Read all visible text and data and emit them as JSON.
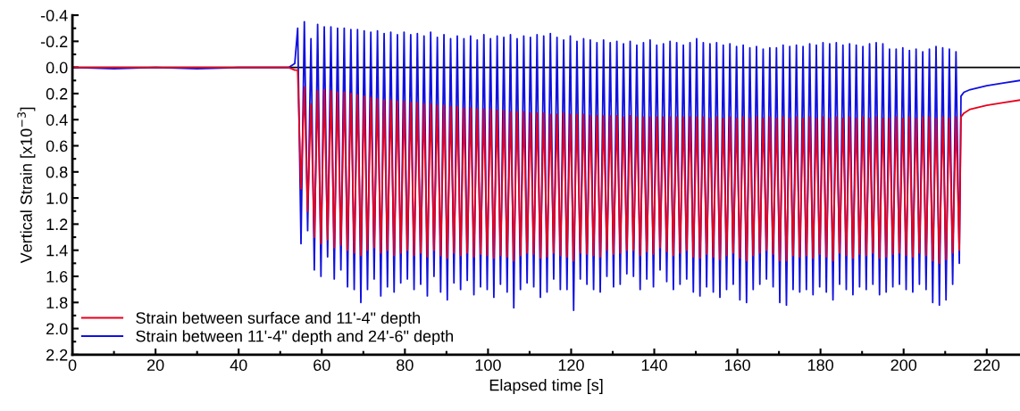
{
  "chart_data": {
    "type": "line",
    "xlabel": "Elapsed time [s]",
    "ylabel": "Vertical Strain [x10$^{−3}$]",
    "xlim": [
      0,
      228
    ],
    "xticks": [
      0,
      20,
      40,
      60,
      80,
      100,
      120,
      140,
      160,
      180,
      200,
      220
    ],
    "ylim": [
      2.2,
      -0.4
    ],
    "yticks": [
      -0.4,
      -0.2,
      {
        "value": 0,
        "label": "0.0"
      },
      0.2,
      0.4,
      0.6,
      0.8,
      {
        "value": 1,
        "label": "1.0"
      },
      1.2,
      1.4,
      1.6,
      1.8,
      {
        "value": 2,
        "label": "2.0"
      },
      2.2
    ],
    "grid": false,
    "legend": "bottom left",
    "line_style": "solid",
    "marker": "none",
    "ref_lines": [
      {
        "axis": "y",
        "value": 0,
        "color": "#000000"
      }
    ],
    "x": [
      0,
      10,
      20,
      30,
      40,
      50,
      52,
      53.5,
      54.2,
      55.0,
      55.8,
      56.6,
      57.4,
      58.2,
      59.0,
      59.8,
      60.6,
      61.4,
      62.2,
      63.0,
      63.8,
      64.6,
      65.4,
      66.2,
      67.0,
      67.8,
      68.6,
      69.4,
      70.2,
      71.0,
      71.8,
      72.6,
      73.4,
      74.2,
      75.0,
      75.8,
      76.6,
      77.4,
      78.2,
      79.0,
      79.8,
      80.6,
      81.4,
      82.2,
      83.0,
      83.8,
      84.6,
      85.4,
      86.2,
      87.0,
      87.8,
      88.6,
      89.4,
      90.2,
      91.0,
      91.8,
      92.6,
      93.4,
      94.2,
      95.0,
      95.8,
      96.6,
      97.4,
      98.2,
      99.0,
      99.8,
      100.6,
      101.4,
      102.2,
      103.0,
      103.8,
      104.6,
      105.4,
      106.2,
      107.0,
      107.8,
      108.6,
      109.4,
      110.2,
      111.0,
      111.8,
      112.6,
      113.4,
      114.2,
      115.0,
      115.8,
      116.6,
      117.4,
      118.2,
      119.0,
      119.8,
      120.6,
      121.4,
      122.2,
      123.0,
      123.8,
      124.6,
      125.4,
      126.2,
      127.0,
      127.8,
      128.6,
      129.4,
      130.2,
      131.0,
      131.8,
      132.6,
      133.4,
      134.2,
      135.0,
      135.8,
      136.6,
      137.4,
      138.2,
      139.0,
      139.8,
      140.6,
      141.4,
      142.2,
      143.0,
      143.8,
      144.6,
      145.4,
      146.2,
      147.0,
      147.8,
      148.6,
      149.4,
      150.2,
      151.0,
      151.8,
      152.6,
      153.4,
      154.2,
      155.0,
      155.8,
      156.6,
      157.4,
      158.2,
      159.0,
      159.8,
      160.6,
      161.4,
      162.2,
      163.0,
      163.8,
      164.6,
      165.4,
      166.2,
      167.0,
      167.8,
      168.6,
      169.4,
      170.2,
      171.0,
      171.8,
      172.6,
      173.4,
      174.2,
      175.0,
      175.8,
      176.6,
      177.4,
      178.2,
      179.0,
      179.8,
      180.6,
      181.4,
      182.2,
      183.0,
      183.8,
      184.6,
      185.4,
      186.2,
      187.0,
      187.8,
      188.6,
      189.4,
      190.2,
      191.0,
      191.8,
      192.6,
      193.4,
      194.2,
      195.0,
      195.8,
      196.6,
      197.4,
      198.2,
      199.0,
      199.8,
      200.6,
      201.4,
      202.2,
      203.0,
      203.8,
      204.6,
      205.4,
      206.2,
      207.0,
      207.8,
      208.6,
      209.4,
      210.2,
      211.0,
      211.8,
      212.6,
      213.4,
      213.8,
      214.5,
      216,
      220,
      224,
      228
    ],
    "series": [
      {
        "name": "Strain between surface and 11'-4\" depth",
        "color": "#e8001c",
        "values": [
          0,
          0,
          0,
          0,
          0,
          0,
          0,
          0.02,
          0.02,
          0.93,
          0.15,
          1.1,
          0.28,
          1.3,
          0.18,
          1.35,
          0.17,
          1.32,
          0.18,
          1.38,
          0.19,
          1.36,
          0.19,
          1.4,
          0.2,
          1.42,
          0.21,
          1.44,
          0.22,
          1.4,
          0.23,
          1.38,
          0.24,
          1.42,
          0.25,
          1.4,
          0.25,
          1.44,
          0.26,
          1.42,
          0.26,
          1.4,
          0.27,
          1.44,
          0.27,
          1.42,
          0.28,
          1.45,
          0.28,
          1.4,
          0.29,
          1.44,
          0.29,
          1.46,
          0.3,
          1.42,
          0.3,
          1.44,
          0.31,
          1.42,
          0.31,
          1.45,
          0.32,
          1.43,
          0.32,
          1.44,
          0.32,
          1.46,
          0.33,
          1.44,
          0.33,
          1.45,
          0.34,
          1.48,
          0.34,
          1.44,
          0.34,
          1.42,
          0.35,
          1.43,
          0.35,
          1.46,
          0.35,
          1.45,
          0.36,
          1.42,
          0.36,
          1.44,
          0.35,
          1.45,
          0.36,
          1.48,
          0.36,
          1.42,
          0.36,
          1.43,
          0.37,
          1.44,
          0.37,
          1.45,
          0.37,
          1.4,
          0.37,
          1.43,
          0.37,
          1.42,
          0.38,
          1.4,
          0.37,
          1.4,
          0.38,
          1.44,
          0.38,
          1.41,
          0.38,
          1.43,
          0.38,
          1.38,
          0.38,
          1.41,
          0.38,
          1.44,
          0.38,
          1.42,
          0.38,
          1.4,
          0.38,
          1.45,
          0.38,
          1.46,
          0.38,
          1.43,
          0.39,
          1.45,
          0.38,
          1.47,
          0.39,
          1.44,
          0.38,
          1.42,
          0.39,
          1.46,
          0.38,
          1.48,
          0.39,
          1.44,
          0.38,
          1.42,
          0.39,
          1.4,
          0.38,
          1.43,
          0.39,
          1.48,
          0.38,
          1.48,
          0.39,
          1.44,
          0.38,
          1.45,
          0.39,
          1.44,
          0.38,
          1.46,
          0.39,
          1.43,
          0.38,
          1.45,
          0.39,
          1.48,
          0.38,
          1.42,
          0.39,
          1.44,
          0.38,
          1.46,
          0.39,
          1.43,
          0.38,
          1.44,
          0.39,
          1.42,
          0.38,
          1.46,
          0.39,
          1.45,
          0.39,
          1.43,
          0.38,
          1.42,
          0.39,
          1.44,
          0.38,
          1.45,
          0.39,
          1.42,
          0.38,
          1.44,
          0.38,
          1.48,
          0.39,
          1.5,
          0.38,
          1.47,
          0.39,
          1.42,
          0.38,
          1.4,
          0.38,
          0.35,
          0.32,
          0.29,
          0.27,
          0.25
        ]
      },
      {
        "name": "Strain between 11'-4\" depth and 24'-6\" depth",
        "color": "#1010e0",
        "values": [
          0,
          0.01,
          0,
          0.01,
          0,
          0,
          0,
          -0.03,
          -0.3,
          1.35,
          -0.35,
          1.25,
          -0.22,
          1.55,
          -0.33,
          1.6,
          -0.31,
          1.45,
          -0.31,
          1.62,
          -0.3,
          1.55,
          -0.3,
          1.68,
          -0.29,
          1.7,
          -0.29,
          1.8,
          -0.28,
          1.7,
          -0.27,
          1.62,
          -0.28,
          1.75,
          -0.26,
          1.68,
          -0.27,
          1.72,
          -0.25,
          1.65,
          -0.27,
          1.62,
          -0.25,
          1.7,
          -0.26,
          1.66,
          -0.24,
          1.75,
          -0.27,
          1.6,
          -0.23,
          1.72,
          -0.25,
          1.78,
          -0.22,
          1.65,
          -0.24,
          1.7,
          -0.22,
          1.63,
          -0.24,
          1.74,
          -0.21,
          1.68,
          -0.25,
          1.7,
          -0.22,
          1.76,
          -0.24,
          1.66,
          -0.23,
          1.72,
          -0.25,
          1.84,
          -0.22,
          1.7,
          -0.24,
          1.65,
          -0.23,
          1.68,
          -0.25,
          1.76,
          -0.24,
          1.72,
          -0.26,
          1.62,
          -0.23,
          1.7,
          -0.21,
          1.7,
          -0.24,
          1.86,
          -0.2,
          1.62,
          -0.22,
          1.66,
          -0.21,
          1.7,
          -0.19,
          1.72,
          -0.21,
          1.6,
          -0.19,
          1.68,
          -0.2,
          1.66,
          -0.18,
          1.58,
          -0.2,
          1.6,
          -0.17,
          1.7,
          -0.19,
          1.62,
          -0.21,
          1.68,
          -0.17,
          1.55,
          -0.18,
          1.64,
          -0.2,
          1.7,
          -0.19,
          1.66,
          -0.17,
          1.62,
          -0.19,
          1.72,
          -0.22,
          1.75,
          -0.19,
          1.68,
          -0.18,
          1.72,
          -0.19,
          1.76,
          -0.17,
          1.7,
          -0.18,
          1.66,
          -0.16,
          1.78,
          -0.17,
          1.8,
          -0.15,
          1.7,
          -0.16,
          1.66,
          -0.14,
          1.62,
          -0.15,
          1.68,
          -0.15,
          1.8,
          -0.17,
          1.82,
          -0.16,
          1.7,
          -0.17,
          1.72,
          -0.16,
          1.7,
          -0.18,
          1.74,
          -0.17,
          1.68,
          -0.19,
          1.72,
          -0.18,
          1.78,
          -0.19,
          1.66,
          -0.17,
          1.7,
          -0.18,
          1.74,
          -0.17,
          1.68,
          -0.16,
          1.7,
          -0.18,
          1.66,
          -0.19,
          1.74,
          -0.18,
          1.72,
          -0.14,
          1.68,
          -0.14,
          1.66,
          -0.15,
          1.7,
          -0.13,
          1.72,
          -0.14,
          1.66,
          -0.12,
          1.7,
          -0.14,
          1.8,
          -0.16,
          1.82,
          -0.15,
          1.78,
          -0.14,
          1.66,
          -0.12,
          1.5,
          0.22,
          0.19,
          0.17,
          0.14,
          0.12,
          0.1
        ]
      }
    ]
  }
}
